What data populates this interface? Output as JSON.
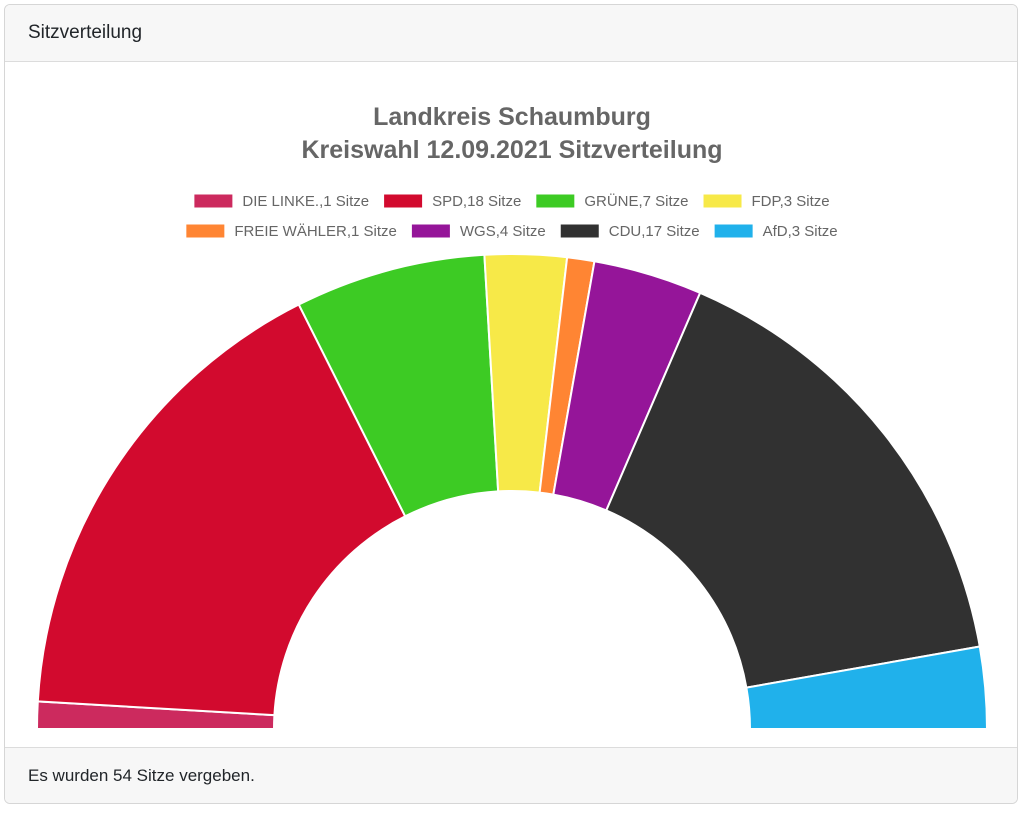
{
  "card": {
    "header": "Sitzverteilung",
    "footer": "Es wurden 54 Sitze vergeben."
  },
  "chart_data": {
    "type": "pie",
    "variant": "half-doughnut",
    "title": [
      "Landkreis Schaumburg",
      "Kreiswahl 12.09.2021 Sitzverteilung"
    ],
    "legend_position": "top",
    "total_seats": 54,
    "series": [
      {
        "name": "DIE LINKE.",
        "label": "DIE LINKE.,1 Sitze",
        "value": 1,
        "color": "#CC2A5E"
      },
      {
        "name": "SPD",
        "label": "SPD,18 Sitze",
        "value": 18,
        "color": "#D20A2E"
      },
      {
        "name": "GRÜNE",
        "label": "GRÜNE,7 Sitze",
        "value": 7,
        "color": "#3DCB24"
      },
      {
        "name": "FDP",
        "label": "FDP,3 Sitze",
        "value": 3,
        "color": "#F7E948"
      },
      {
        "name": "FREIE WÄHLER",
        "label": "FREIE WÄHLER,1 Sitze",
        "value": 1,
        "color": "#FF8533"
      },
      {
        "name": "WGS",
        "label": "WGS,4 Sitze",
        "value": 4,
        "color": "#951599"
      },
      {
        "name": "CDU",
        "label": "CDU,17 Sitze",
        "value": 17,
        "color": "#313131"
      },
      {
        "name": "AfD",
        "label": "AfD,3 Sitze",
        "value": 3,
        "color": "#20B1EB"
      }
    ]
  }
}
